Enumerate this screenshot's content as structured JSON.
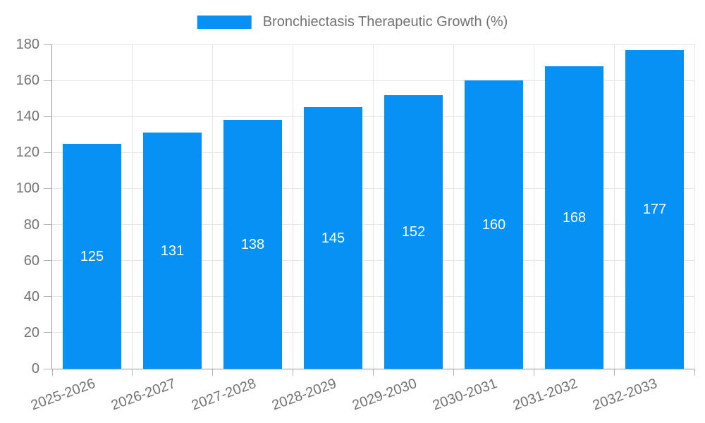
{
  "legend": {
    "label": "Bronchiectasis Therapeutic Growth (%)"
  },
  "chart_data": {
    "type": "bar",
    "title": "Bronchiectasis Therapeutic Growth (%)",
    "series_name": "Bronchiectasis Therapeutic Growth (%)",
    "categories": [
      "2025-2026",
      "2026-2027",
      "2027-2028",
      "2028-2029",
      "2029-2030",
      "2030-2031",
      "2031-2032",
      "2032-2033"
    ],
    "values": [
      125,
      131,
      138,
      145,
      152,
      160,
      168,
      177
    ],
    "value_labels": [
      "125",
      "131",
      "138",
      "145",
      "152",
      "160",
      "168",
      "177"
    ],
    "xlabel": "",
    "ylabel": "",
    "ylim": [
      0,
      180
    ],
    "yticks": [
      0,
      20,
      40,
      60,
      80,
      100,
      120,
      140,
      160,
      180
    ],
    "grid": true,
    "legend_position": "top-center",
    "x_label_rotation_deg": -20,
    "colors": {
      "bar": "#0891f5",
      "value_label": "#ffffff",
      "grid": "#e6e6e6",
      "axis": "#999999",
      "tick": "#b3b3b3",
      "text": "#737373"
    }
  }
}
